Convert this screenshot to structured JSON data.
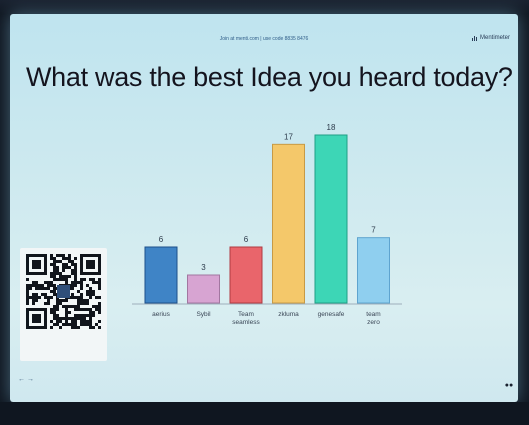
{
  "header": {
    "join_text": "Join at menti.com | use code 8835 8476",
    "brand": "Mentimeter"
  },
  "question": "What was the best Idea you heard today?",
  "colors": {
    "bars": [
      "#3f84c6",
      "#d7a4d2",
      "#e9656b",
      "#f4c86a",
      "#3dd6b6",
      "#8fcfef"
    ],
    "bar_stroke": [
      "#1c4f8a",
      "#a276a0",
      "#b03a42",
      "#c79a45",
      "#1f9f85",
      "#5ea4cf"
    ]
  },
  "chart_data": {
    "type": "bar",
    "categories": [
      [
        "aerius"
      ],
      [
        "Sybil"
      ],
      [
        "Team",
        "seamless"
      ],
      [
        "zkluma"
      ],
      [
        "genesafe"
      ],
      [
        "team",
        "zero"
      ]
    ],
    "values": [
      6,
      3,
      6,
      17,
      18,
      7
    ]
  },
  "footer": {
    "nav": "← →",
    "tools": "●●"
  },
  "icons": {
    "qr": "qr-code-icon",
    "nav": "arrow-icon"
  }
}
